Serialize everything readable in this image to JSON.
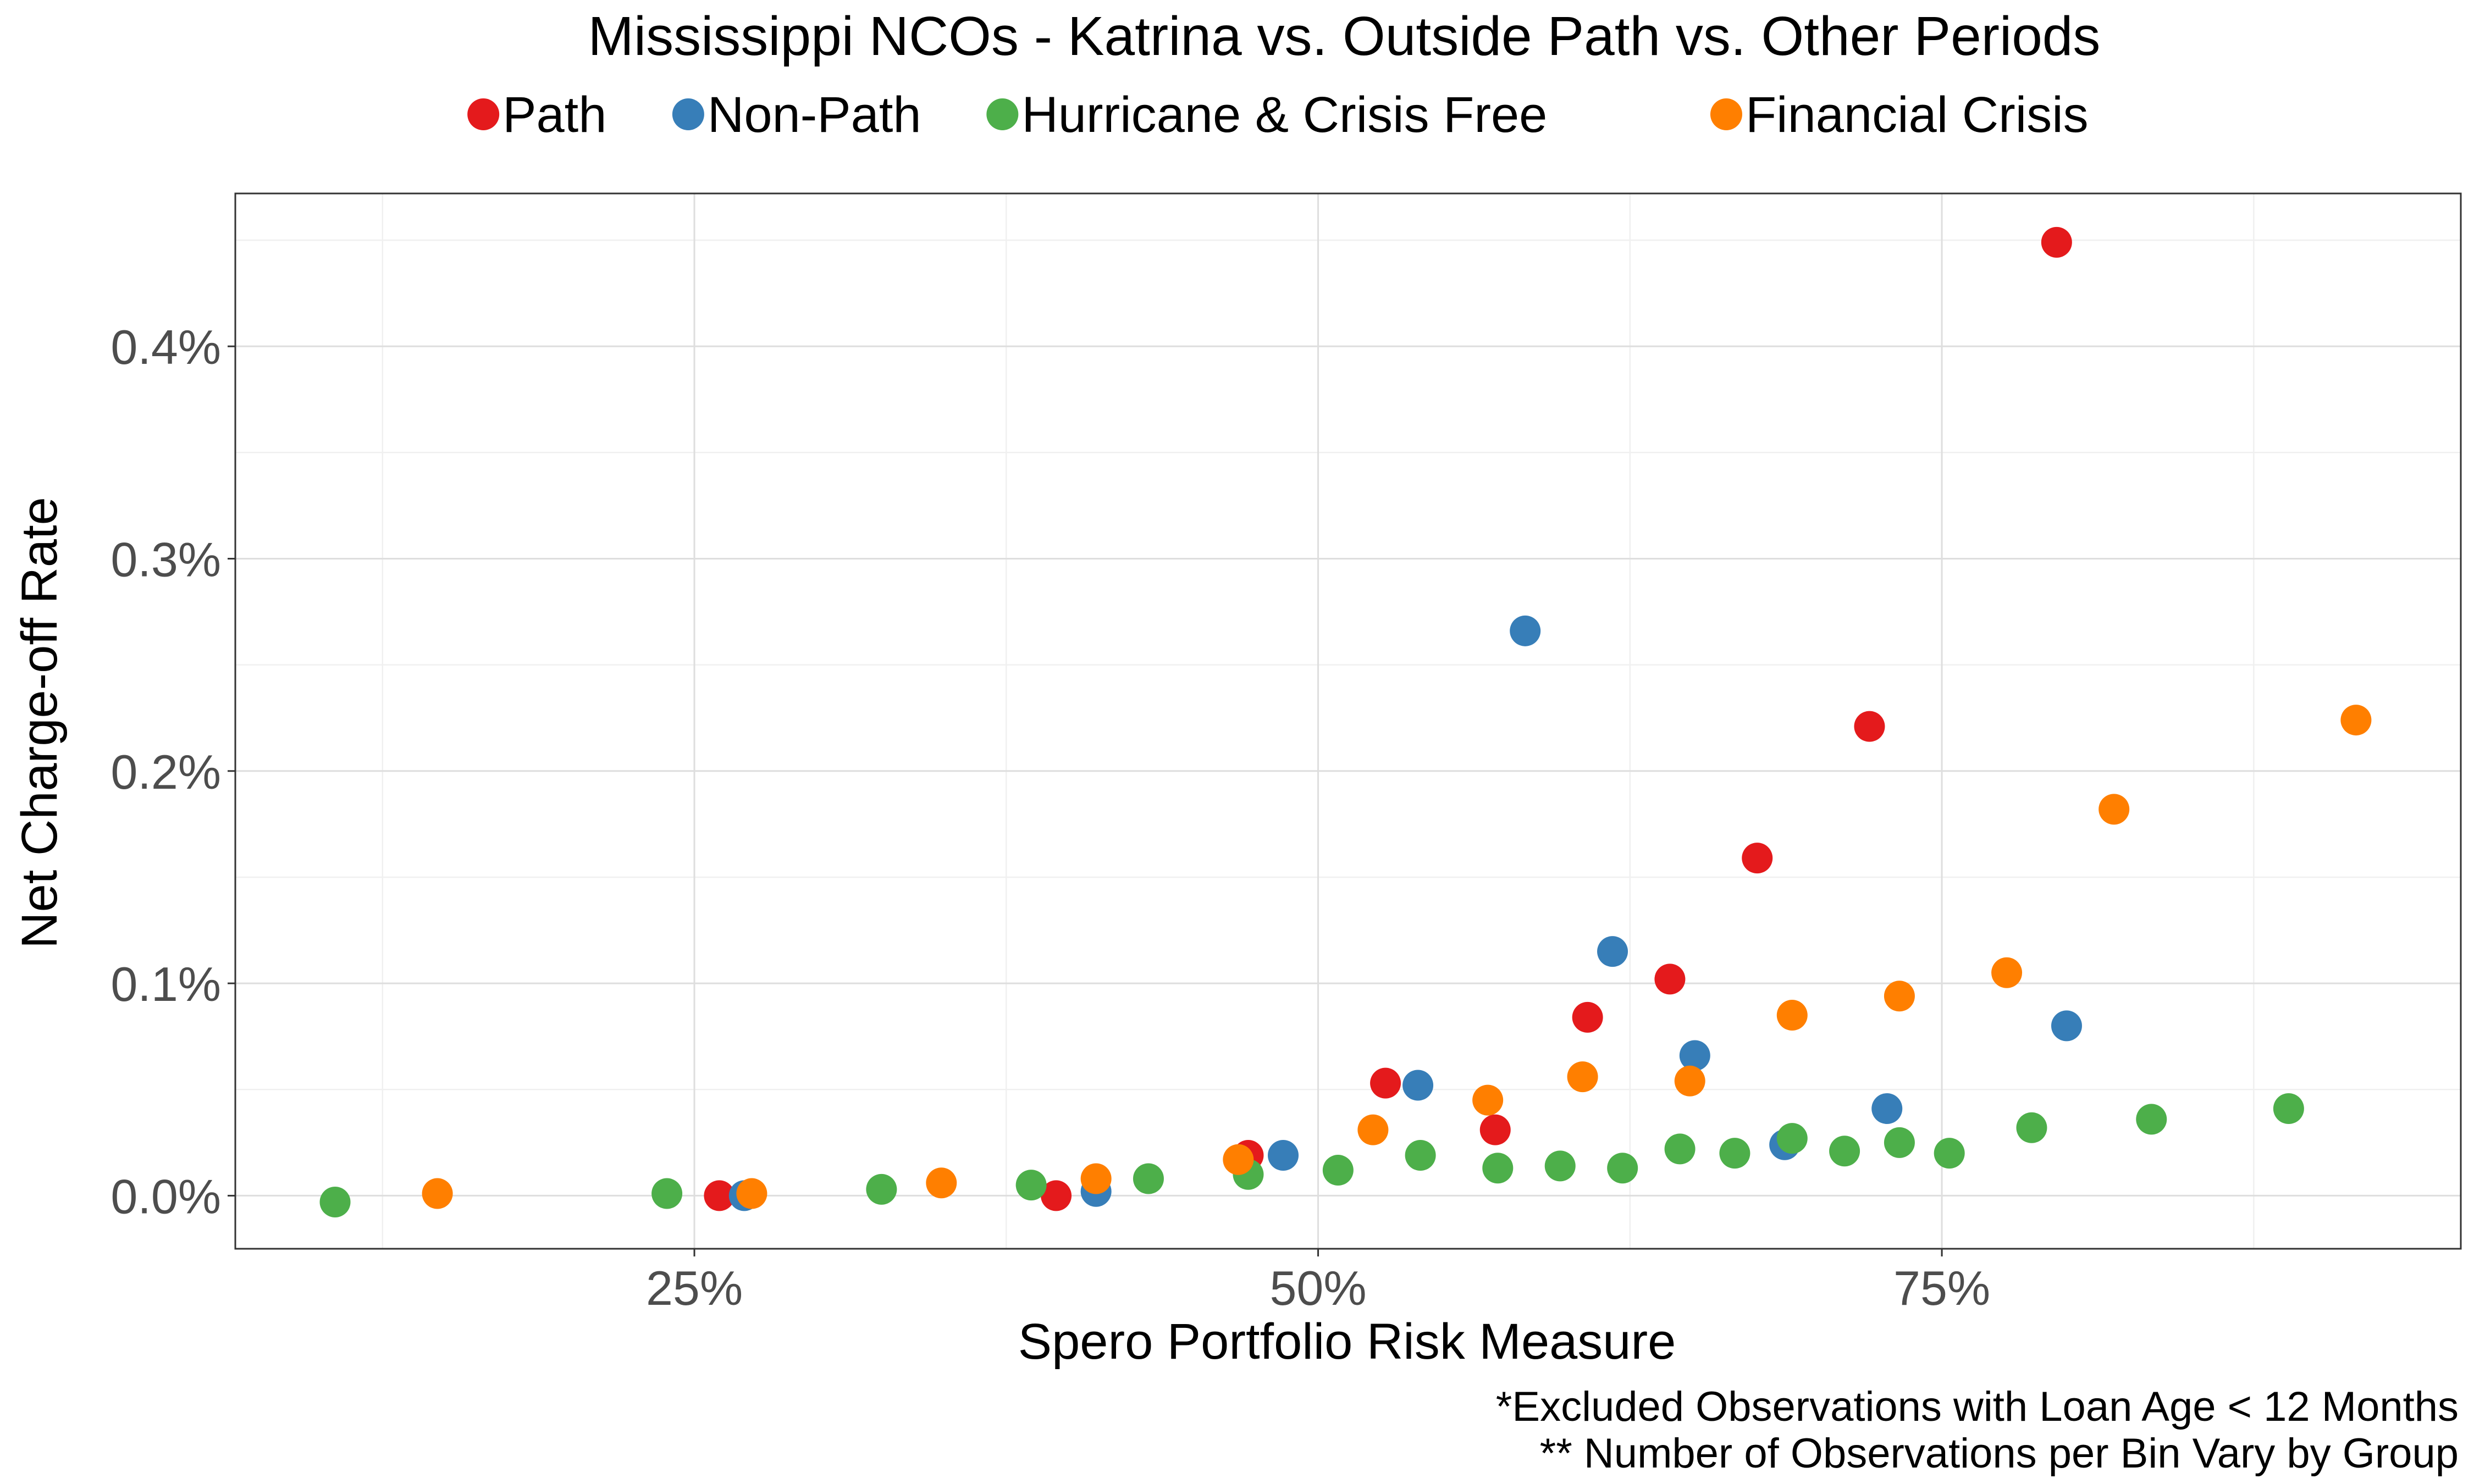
{
  "chart_data": {
    "type": "scatter",
    "title": "Mississippi NCOs - Katrina vs. Outside Path vs. Other Periods",
    "xlabel": "Spero Portfolio Risk Measure",
    "ylabel": "Net Charge-off Rate",
    "xlim": [
      0.066,
      0.958
    ],
    "ylim": [
      -0.00025,
      0.00472
    ],
    "x_ticks": [
      {
        "value": 0.25,
        "label": "25%"
      },
      {
        "value": 0.5,
        "label": "50%"
      },
      {
        "value": 0.75,
        "label": "75%"
      }
    ],
    "y_ticks": [
      {
        "value": 0.0,
        "label": "0.0%"
      },
      {
        "value": 0.001,
        "label": "0.1%"
      },
      {
        "value": 0.002,
        "label": "0.2%"
      },
      {
        "value": 0.003,
        "label": "0.3%"
      },
      {
        "value": 0.004,
        "label": "0.4%"
      }
    ],
    "grid": true,
    "legend_position": "top",
    "series": [
      {
        "name": "Path",
        "color": "#e41a1c",
        "points": [
          {
            "x": 0.26,
            "y": 0.0
          },
          {
            "x": 0.395,
            "y": 0.0
          },
          {
            "x": 0.472,
            "y": 0.00019
          },
          {
            "x": 0.527,
            "y": 0.00053
          },
          {
            "x": 0.571,
            "y": 0.00031
          },
          {
            "x": 0.608,
            "y": 0.00084
          },
          {
            "x": 0.641,
            "y": 0.00102
          },
          {
            "x": 0.676,
            "y": 0.00159
          },
          {
            "x": 0.721,
            "y": 0.00221
          },
          {
            "x": 0.796,
            "y": 0.00449
          }
        ]
      },
      {
        "name": "Non-Path",
        "color": "#377eb8",
        "points": [
          {
            "x": 0.27,
            "y": 0.0
          },
          {
            "x": 0.411,
            "y": 2e-05
          },
          {
            "x": 0.486,
            "y": 0.00019
          },
          {
            "x": 0.54,
            "y": 0.00052
          },
          {
            "x": 0.583,
            "y": 0.00266
          },
          {
            "x": 0.618,
            "y": 0.00115
          },
          {
            "x": 0.651,
            "y": 0.00066
          },
          {
            "x": 0.687,
            "y": 0.00024
          },
          {
            "x": 0.728,
            "y": 0.00041
          },
          {
            "x": 0.8,
            "y": 0.0008
          }
        ]
      },
      {
        "name": "Hurricane & Crisis Free",
        "color": "#4daf4a",
        "points": [
          {
            "x": 0.106,
            "y": -3e-05
          },
          {
            "x": 0.239,
            "y": 1e-05
          },
          {
            "x": 0.325,
            "y": 3e-05
          },
          {
            "x": 0.385,
            "y": 5e-05
          },
          {
            "x": 0.432,
            "y": 8e-05
          },
          {
            "x": 0.472,
            "y": 0.0001
          },
          {
            "x": 0.508,
            "y": 0.00012
          },
          {
            "x": 0.541,
            "y": 0.00019
          },
          {
            "x": 0.572,
            "y": 0.00013
          },
          {
            "x": 0.597,
            "y": 0.00014
          },
          {
            "x": 0.622,
            "y": 0.00013
          },
          {
            "x": 0.645,
            "y": 0.00022
          },
          {
            "x": 0.667,
            "y": 0.0002
          },
          {
            "x": 0.69,
            "y": 0.00027
          },
          {
            "x": 0.711,
            "y": 0.00021
          },
          {
            "x": 0.733,
            "y": 0.00025
          },
          {
            "x": 0.753,
            "y": 0.0002
          },
          {
            "x": 0.786,
            "y": 0.00032
          },
          {
            "x": 0.834,
            "y": 0.00036
          },
          {
            "x": 0.889,
            "y": 0.00041
          }
        ]
      },
      {
        "name": "Financial Crisis",
        "color": "#ff7f00",
        "points": [
          {
            "x": 0.147,
            "y": 1e-05
          },
          {
            "x": 0.273,
            "y": 1e-05
          },
          {
            "x": 0.349,
            "y": 6e-05
          },
          {
            "x": 0.411,
            "y": 8e-05
          },
          {
            "x": 0.468,
            "y": 0.00017
          },
          {
            "x": 0.522,
            "y": 0.00031
          },
          {
            "x": 0.568,
            "y": 0.00045
          },
          {
            "x": 0.606,
            "y": 0.00056
          },
          {
            "x": 0.649,
            "y": 0.00054
          },
          {
            "x": 0.69,
            "y": 0.00085
          },
          {
            "x": 0.733,
            "y": 0.00094
          },
          {
            "x": 0.776,
            "y": 0.00105
          },
          {
            "x": 0.819,
            "y": 0.00182
          },
          {
            "x": 0.916,
            "y": 0.00224
          }
        ]
      }
    ],
    "annotations": [
      "*Excluded Observations with Loan Age < 12 Months",
      "** Number of Observations per Bin Vary by Group"
    ]
  }
}
